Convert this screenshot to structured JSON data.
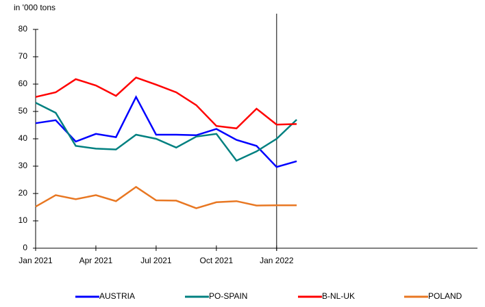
{
  "chart_data": {
    "type": "line",
    "y_label": "in '000 tons",
    "categories": [
      "Jan 2021",
      null,
      null,
      "Apr 2021",
      null,
      null,
      "Jul 2021",
      null,
      null,
      "Oct 2021",
      null,
      null,
      "Jan 2022",
      null,
      null,
      null,
      null,
      null,
      null,
      null,
      null,
      null,
      null
    ],
    "series": [
      {
        "name": "AUSTRIA",
        "color": "#0000ff",
        "values": [
          45.7,
          46.8,
          39.0,
          41.8,
          40.6,
          55.3,
          41.5,
          41.5,
          41.3,
          43.6,
          39.6,
          37.4,
          29.7,
          31.8,
          null,
          null,
          null,
          null,
          null,
          null,
          null,
          null,
          null
        ]
      },
      {
        "name": "PO-SPAIN",
        "color": "#008080",
        "values": [
          53.2,
          49.5,
          37.4,
          36.4,
          36.1,
          41.5,
          40.0,
          36.8,
          40.8,
          41.8,
          32.0,
          35.4,
          40.0,
          47.0,
          null,
          null,
          null,
          null,
          null,
          null,
          null,
          null,
          null
        ]
      },
      {
        "name": "B-NL-UK",
        "color": "#ff0000",
        "values": [
          55.3,
          57.0,
          61.8,
          59.5,
          55.7,
          62.4,
          59.8,
          57.0,
          52.3,
          44.7,
          43.8,
          51.0,
          45.2,
          45.4,
          null,
          null,
          null,
          null,
          null,
          null,
          null,
          null,
          null
        ]
      },
      {
        "name": "POLAND",
        "color": "#e87722",
        "values": [
          15.2,
          19.4,
          17.9,
          19.4,
          17.2,
          22.4,
          17.5,
          17.4,
          14.6,
          16.8,
          17.2,
          15.6,
          15.7,
          15.7,
          null,
          null,
          null,
          null,
          null,
          null,
          null,
          null,
          null
        ]
      }
    ],
    "ylim": [
      0,
      80
    ],
    "yticks": [
      0,
      10,
      20,
      30,
      40,
      50,
      60,
      70,
      80
    ],
    "grid": false,
    "legend": "bottom"
  }
}
